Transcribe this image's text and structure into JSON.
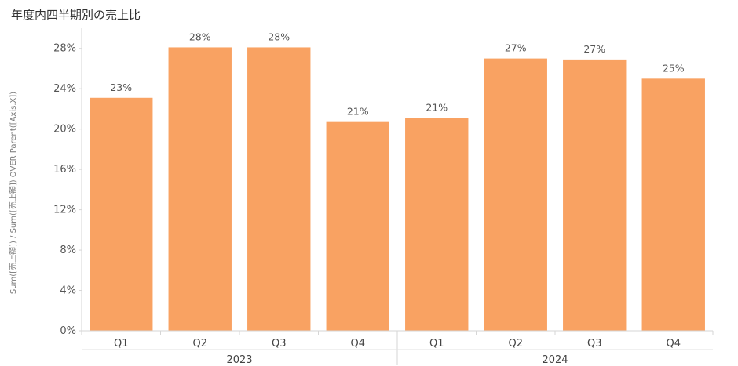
{
  "chart_data": {
    "type": "bar",
    "title": "年度内四半期別の売上比",
    "ylabel": "Sum([売上額]) / Sum([売上額]) OVER Parent([Axis.X])",
    "xlabel": "",
    "ylim": [
      0,
      30
    ],
    "y_ticks": [
      0,
      4,
      8,
      12,
      16,
      20,
      24,
      28
    ],
    "y_tick_labels": [
      "0%",
      "4%",
      "8%",
      "12%",
      "16%",
      "20%",
      "24%",
      "28%"
    ],
    "grid": false,
    "legend": "none",
    "bar_color": "#F9A262",
    "groups": [
      {
        "label": "2023",
        "categories": [
          "Q1",
          "Q2",
          "Q3",
          "Q4"
        ],
        "values": [
          23.1,
          28.1,
          28.1,
          20.7
        ],
        "value_labels": [
          "23%",
          "28%",
          "28%",
          "21%"
        ]
      },
      {
        "label": "2024",
        "categories": [
          "Q1",
          "Q2",
          "Q3",
          "Q4"
        ],
        "values": [
          21.1,
          27.0,
          26.9,
          25.0
        ],
        "value_labels": [
          "21%",
          "27%",
          "27%",
          "25%"
        ]
      }
    ]
  }
}
